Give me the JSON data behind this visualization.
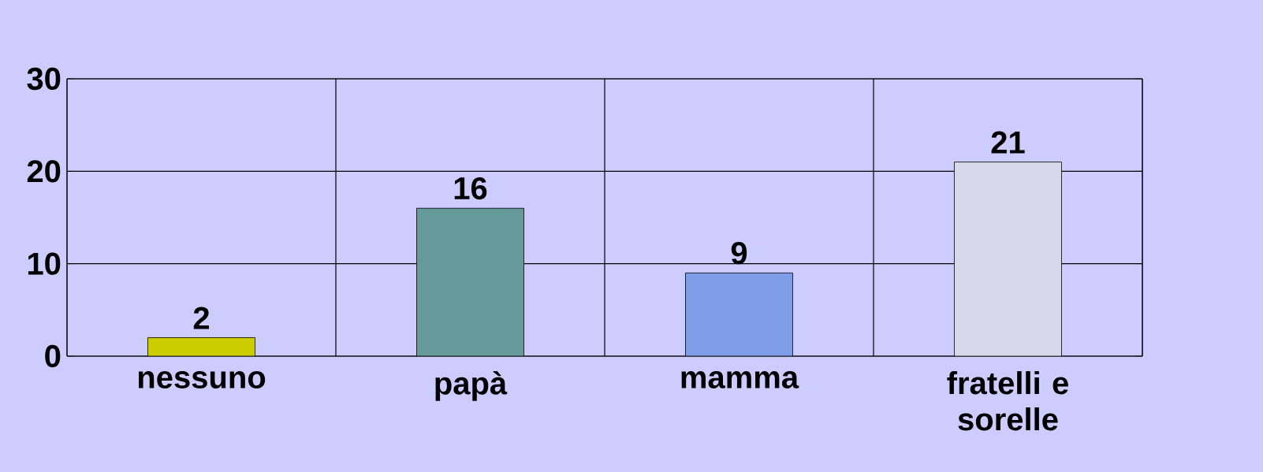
{
  "chart_data": {
    "type": "bar",
    "categories": [
      "nessuno",
      "papà",
      "mamma",
      "fratelli e sorelle"
    ],
    "values": [
      2,
      16,
      9,
      21
    ],
    "colors": [
      "#cccc00",
      "#669999",
      "#7f9ce6",
      "#d8d8ec"
    ],
    "ylim": [
      0,
      30
    ],
    "yticks": [
      0,
      10,
      20,
      30
    ],
    "grid": "y",
    "data_labels": true
  }
}
